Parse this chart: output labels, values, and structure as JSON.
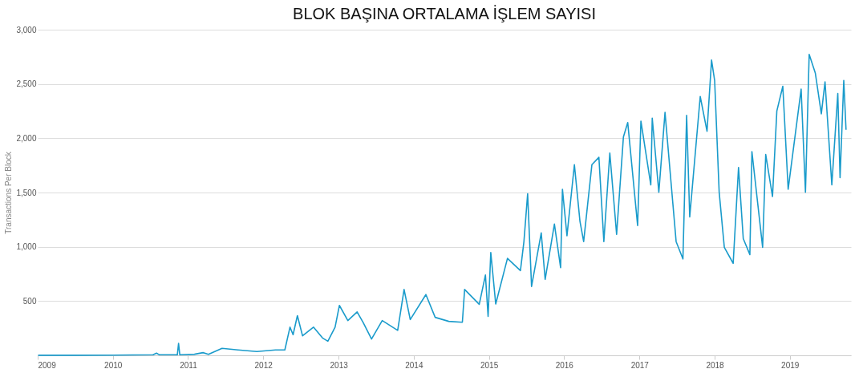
{
  "chart_data": {
    "type": "line",
    "title": "BLOK BAŞINA ORTALAMA İŞLEM SAYISI",
    "ylabel": "Transactions Per Block",
    "x": [
      "2009-01-03",
      "2009-07-01",
      "2010-01-01",
      "2010-07-15",
      "2010-08-01",
      "2010-08-15",
      "2010-11-10",
      "2010-11-16",
      "2010-11-22",
      "2011-02-01",
      "2011-03-15",
      "2011-04-10",
      "2011-06-15",
      "2011-09-01",
      "2011-12-01",
      "2012-03-01",
      "2012-04-15",
      "2012-05-10",
      "2012-05-25",
      "2012-06-15",
      "2012-07-10",
      "2012-09-01",
      "2012-10-15",
      "2012-11-10",
      "2012-12-15",
      "2013-01-05",
      "2013-02-15",
      "2013-04-01",
      "2013-05-01",
      "2013-06-10",
      "2013-08-01",
      "2013-10-15",
      "2013-11-15",
      "2013-12-15",
      "2014-03-01",
      "2014-04-15",
      "2014-06-20",
      "2014-08-25",
      "2014-09-05",
      "2014-11-15",
      "2014-12-15",
      "2014-12-28",
      "2015-01-10",
      "2015-02-03",
      "2015-04-01",
      "2015-06-03",
      "2015-06-20",
      "2015-07-08",
      "2015-07-27",
      "2015-09-12",
      "2015-10-01",
      "2015-11-15",
      "2015-12-15",
      "2015-12-24",
      "2016-01-15",
      "2016-02-20",
      "2016-03-18",
      "2016-04-05",
      "2016-05-15",
      "2016-06-18",
      "2016-07-12",
      "2016-08-10",
      "2016-09-12",
      "2016-10-15",
      "2016-11-05",
      "2016-12-23",
      "2017-01-08",
      "2017-02-25",
      "2017-03-04",
      "2017-04-05",
      "2017-05-05",
      "2017-06-28",
      "2017-07-31",
      "2017-08-18",
      "2017-09-02",
      "2017-10-23",
      "2017-11-25",
      "2017-12-17",
      "2018-01-01",
      "2018-01-23",
      "2018-02-17",
      "2018-04-01",
      "2018-04-27",
      "2018-05-20",
      "2018-06-21",
      "2018-07-01",
      "2018-08-22",
      "2018-09-06",
      "2018-10-09",
      "2018-10-30",
      "2018-11-28",
      "2018-12-24",
      "2019-02-25",
      "2019-03-18",
      "2019-04-05",
      "2019-05-05",
      "2019-06-03",
      "2019-06-21",
      "2019-07-24",
      "2019-08-22",
      "2019-09-02",
      "2019-09-20",
      "2019-10-01"
    ],
    "series": [
      {
        "color": "#1a9bcb",
        "values": [
          1,
          1,
          2,
          5,
          20,
          5,
          5,
          110,
          5,
          10,
          25,
          10,
          65,
          50,
          35,
          50,
          50,
          260,
          190,
          366,
          180,
          260,
          160,
          130,
          260,
          460,
          320,
          400,
          300,
          150,
          320,
          230,
          607,
          330,
          560,
          350,
          313,
          305,
          607,
          470,
          740,
          358,
          947,
          473,
          893,
          781,
          1048,
          1489,
          634,
          1128,
          700,
          1209,
          808,
          1530,
          1102,
          1757,
          1235,
          1048,
          1757,
          1824,
          1048,
          1864,
          1115,
          2011,
          2145,
          1195,
          2158,
          1570,
          2185,
          1503,
          2238,
          1048,
          888,
          2211,
          1275,
          2385,
          2064,
          2720,
          2532,
          1503,
          995,
          848,
          1730,
          1075,
          928,
          1877,
          995,
          1850,
          1463,
          2251,
          2479,
          1530,
          2452,
          1503,
          2773,
          2599,
          2225,
          2519,
          1570,
          2412,
          1637,
          2532,
          2078
        ]
      }
    ],
    "xlim": [
      "2009-01-01",
      "2019-10-25"
    ],
    "xticks": [
      "2009",
      "2010",
      "2011",
      "2012",
      "2013",
      "2014",
      "2015",
      "2016",
      "2017",
      "2018",
      "2019"
    ],
    "ylim": [
      0,
      3000
    ],
    "yticks": [
      {
        "value": 0,
        "label": null
      },
      {
        "value": 500,
        "label": "500"
      },
      {
        "value": 1000,
        "label": "1,000"
      },
      {
        "value": 1500,
        "label": "1,500"
      },
      {
        "value": 2000,
        "label": "2,000"
      },
      {
        "value": 2500,
        "label": "2,500"
      },
      {
        "value": 3000,
        "label": "3,000"
      }
    ],
    "grid": "y",
    "line_style": "solid",
    "marker": "none"
  }
}
